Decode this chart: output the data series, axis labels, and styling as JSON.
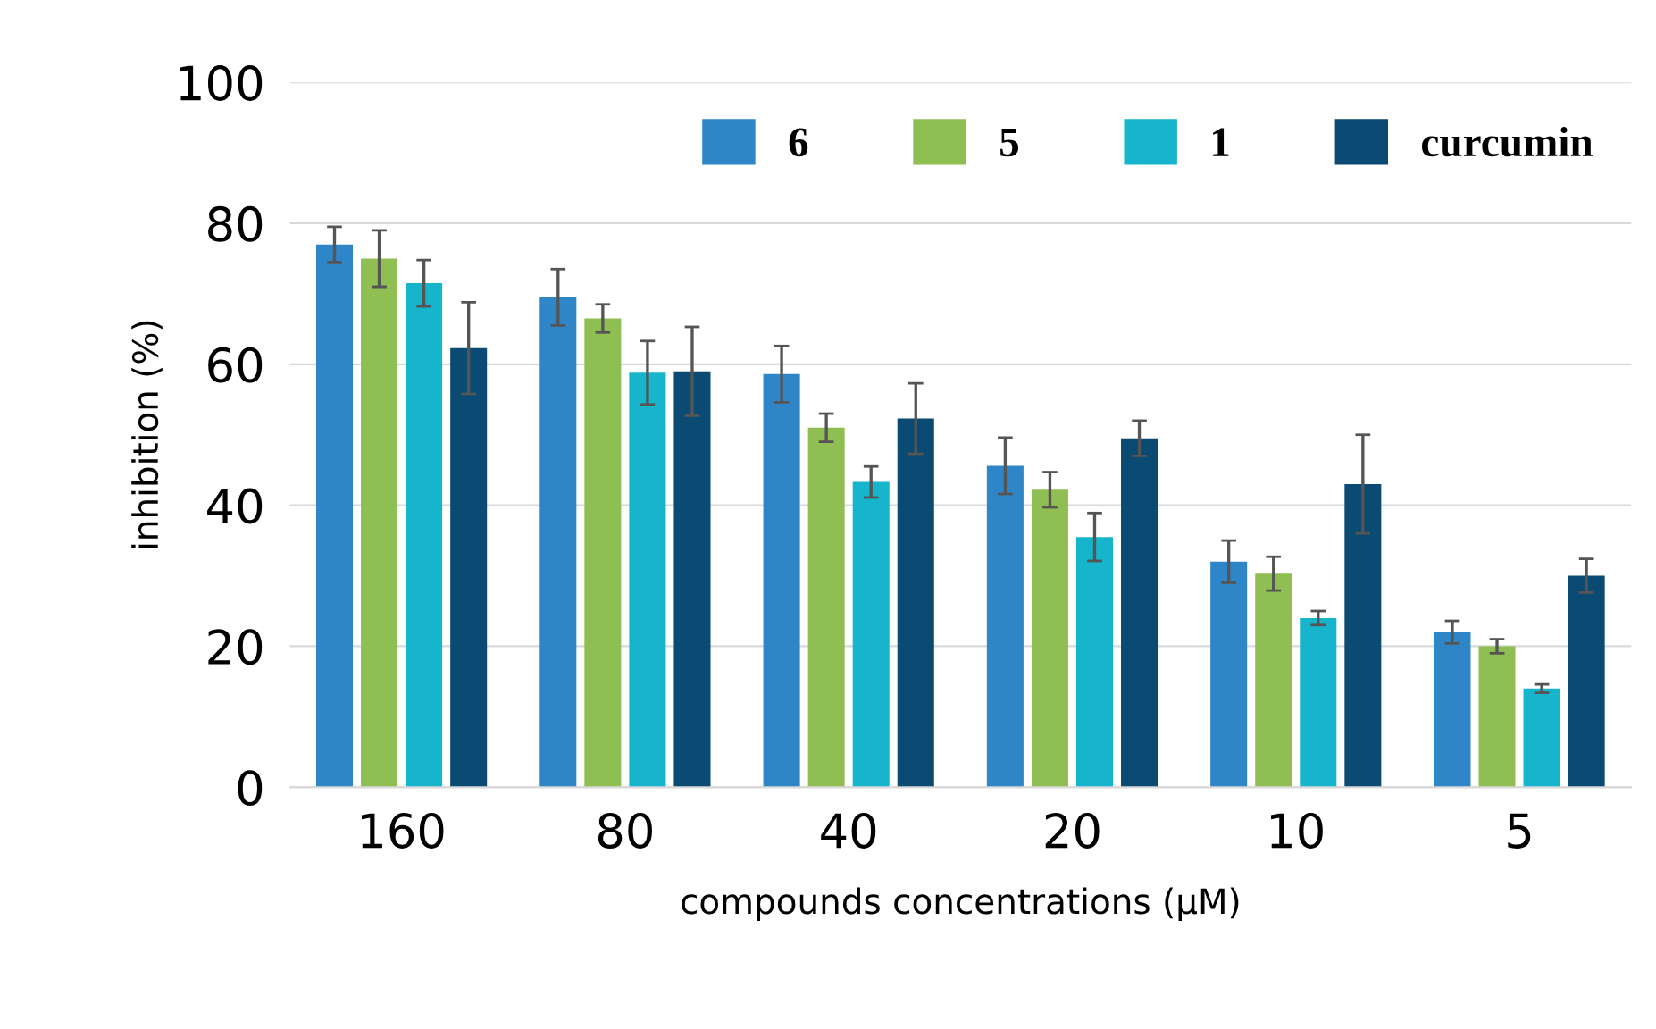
{
  "chart_data": {
    "type": "bar",
    "xlabel": "compounds concentrations (μM)",
    "ylabel": "inhibition (%)",
    "categories": [
      "160",
      "80",
      "40",
      "20",
      "10",
      "5"
    ],
    "series": [
      {
        "name": "6",
        "color": "#2e86c8",
        "values": [
          77,
          69.5,
          58.6,
          45.6,
          32,
          22
        ],
        "errors": [
          2.5,
          4,
          4,
          4,
          3,
          1.6
        ]
      },
      {
        "name": "5",
        "color": "#8fbe52",
        "values": [
          75,
          66.5,
          51,
          42.2,
          30.3,
          20
        ],
        "errors": [
          4,
          2,
          2,
          2.5,
          2.4,
          1
        ]
      },
      {
        "name": "1",
        "color": "#17b5cc",
        "values": [
          71.5,
          58.8,
          43.3,
          35.5,
          24,
          14
        ],
        "errors": [
          3.3,
          4.5,
          2.2,
          3.4,
          1,
          0.6
        ]
      },
      {
        "name": "curcumin",
        "color": "#0a4a73",
        "values": [
          62.3,
          59,
          52.3,
          49.5,
          43,
          30
        ],
        "errors": [
          6.5,
          6.3,
          5,
          2.5,
          7,
          2.4
        ]
      }
    ],
    "ylim": [
      0,
      100
    ],
    "yticks": [
      0,
      20,
      40,
      60,
      80,
      100
    ],
    "grid": "y",
    "legend": "top right"
  }
}
